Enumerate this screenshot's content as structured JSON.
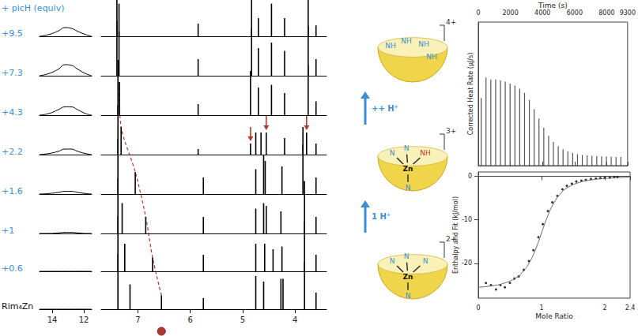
{
  "chart_data": [
    {
      "type": "spectra",
      "title": "+ picH (equiv)",
      "xlim": [
        7.7,
        3.4
      ],
      "xticks": [
        7,
        6,
        5,
        4
      ],
      "inset_xlim": [
        14.8,
        11.5
      ],
      "inset_xticks": [
        14,
        12
      ],
      "ylim": [
        0,
        1
      ],
      "tick_labels": "x",
      "broad_x": [
        14.8,
        14.2,
        13.6,
        13.2,
        12.8,
        12.4,
        11.9,
        11.5
      ],
      "dot_x": 6.55,
      "series": [
        {
          "name": "Rim₄Zn",
          "color": "#000000",
          "x": [
            7.38,
            7.15,
            6.55,
            5.75,
            4.75,
            4.6,
            4.27,
            4.23,
            3.82,
            3.6
          ],
          "values": [
            1.0,
            0.45,
            0.25,
            0.2,
            0.6,
            0.5,
            0.55,
            0.55,
            0.85,
            0.3
          ],
          "broad": [
            0,
            0,
            0,
            0,
            0,
            0,
            0,
            0
          ],
          "tracked": 6.55
        },
        {
          "name": "+0.6",
          "color": "#000000",
          "x": [
            7.38,
            7.25,
            6.72,
            5.75,
            4.75,
            4.58,
            4.42,
            4.25,
            3.82,
            3.6
          ],
          "values": [
            1.0,
            0.5,
            0.25,
            0.3,
            0.5,
            0.5,
            0.4,
            0.45,
            0.9,
            0.3
          ],
          "broad": [
            0,
            0,
            0,
            0,
            0,
            0,
            0,
            0
          ],
          "tracked": 6.72
        },
        {
          "name": "+1",
          "color": "#000000",
          "x": [
            7.38,
            7.3,
            6.85,
            5.75,
            4.75,
            4.6,
            4.55,
            4.27,
            3.82,
            3.6
          ],
          "values": [
            1.0,
            0.55,
            0.3,
            0.3,
            0.45,
            0.55,
            0.5,
            0.4,
            0.95,
            0.3
          ],
          "broad": [
            0,
            0,
            0.01,
            0.02,
            0.02,
            0.01,
            0,
            0
          ],
          "tracked": 6.85
        },
        {
          "name": "+1.6",
          "color": "#000000",
          "x": [
            7.38,
            7.05,
            5.75,
            4.75,
            4.6,
            4.57,
            4.25,
            3.85,
            3.6
          ],
          "values": [
            1.0,
            0.4,
            0.3,
            0.45,
            0.7,
            0.6,
            0.5,
            0.9,
            0.3
          ],
          "broad": [
            0,
            0.01,
            0.03,
            0.05,
            0.05,
            0.03,
            0.01,
            0
          ],
          "tracked": 7.05
        },
        {
          "name": "+2.2",
          "color": "#000000",
          "x": [
            7.38,
            7.32,
            5.85,
            4.85,
            4.75,
            4.65,
            4.55,
            4.2,
            3.85,
            3.78,
            3.6
          ],
          "values": [
            0.9,
            0.5,
            0.1,
            0.2,
            0.4,
            0.4,
            0.4,
            0.3,
            0.5,
            0.4,
            0.2
          ],
          "broad": [
            0,
            0.02,
            0.06,
            0.1,
            0.1,
            0.06,
            0.02,
            0
          ],
          "tracked": 7.32,
          "arrows": [
            4.85,
            4.55,
            3.78
          ]
        },
        {
          "name": "+4.3",
          "color": "#000000",
          "x": [
            7.38,
            7.35,
            5.85,
            4.85,
            4.7,
            4.45,
            4.2,
            3.75,
            3.6
          ],
          "values": [
            1.0,
            0.6,
            0.2,
            0.8,
            0.5,
            0.55,
            0.4,
            0.9,
            0.25
          ],
          "broad": [
            0,
            0.03,
            0.1,
            0.15,
            0.15,
            0.1,
            0.03,
            0
          ],
          "tracked": 7.35
        },
        {
          "name": "+7.3",
          "color": "#000000",
          "x": [
            7.4,
            7.36,
            5.85,
            4.83,
            4.7,
            4.45,
            4.2,
            3.75,
            3.6
          ],
          "values": [
            1.0,
            0.8,
            0.3,
            0.85,
            0.5,
            0.6,
            0.45,
            0.9,
            0.3
          ],
          "broad": [
            0,
            0.04,
            0.12,
            0.2,
            0.19,
            0.12,
            0.04,
            0
          ]
        },
        {
          "name": "+9.5",
          "color": "#000000",
          "x": [
            7.4,
            7.36,
            5.85,
            4.83,
            4.7,
            4.45,
            4.2,
            3.75,
            3.6
          ],
          "values": [
            1.0,
            0.9,
            0.35,
            1.0,
            0.5,
            0.9,
            0.5,
            1.0,
            0.3
          ],
          "broad": [
            0,
            0.05,
            0.15,
            0.24,
            0.22,
            0.14,
            0.05,
            0
          ]
        }
      ]
    },
    {
      "type": "bar",
      "x_label": "Time (s)",
      "y_label": "Corrected Heat Rate (μJ/s)",
      "x": [
        180,
        480,
        780,
        1080,
        1380,
        1680,
        1980,
        2280,
        2580,
        2880,
        3180,
        3480,
        3780,
        4080,
        4380,
        4680,
        4980,
        5280,
        5580,
        5880,
        6180,
        6480,
        6780,
        7080,
        7380,
        7680,
        7980,
        8280,
        8580,
        8880
      ],
      "values": [
        3.3,
        4.3,
        4.2,
        4.2,
        4.15,
        4.1,
        4.0,
        3.9,
        3.75,
        3.55,
        3.2,
        2.75,
        2.3,
        1.85,
        1.45,
        1.15,
        0.95,
        0.8,
        0.7,
        0.62,
        0.56,
        0.52,
        0.5,
        0.48,
        0.46,
        0.45,
        0.44,
        0.43,
        0.42,
        0.42
      ],
      "color": "#555555",
      "xlim": [
        0,
        9300
      ],
      "xticks": [
        0,
        2000,
        4000,
        6000,
        8000
      ],
      "ylim": [
        0,
        7
      ],
      "tick_labels": "x"
    },
    {
      "type": "scatter",
      "x_label": "Mole Ratio",
      "y_label": "Enthalpy and Fit (kJ/mol)",
      "x": [
        0.12,
        0.2,
        0.28,
        0.35,
        0.42,
        0.5,
        0.57,
        0.64,
        0.72,
        0.8,
        0.87,
        0.95,
        1.02,
        1.1,
        1.17,
        1.25,
        1.33,
        1.4,
        1.48,
        1.55,
        1.63,
        1.7,
        1.78,
        1.86,
        1.93,
        2.0,
        2.08,
        2.15,
        2.2
      ],
      "values": [
        -24.5,
        -25,
        -26,
        -25,
        -25.5,
        -24.5,
        -23.5,
        -23,
        -21.5,
        -19.5,
        -17,
        -14,
        -11,
        -8,
        -6,
        -4.5,
        -3,
        -2.2,
        -1.7,
        -1.2,
        -1,
        -0.8,
        -0.6,
        -0.5,
        -0.4,
        -0.3,
        -0.3,
        -0.2,
        -0.2
      ],
      "color": "#000000",
      "fit": {
        "x": [
          0,
          0.2,
          0.4,
          0.6,
          0.7,
          0.8,
          0.9,
          1.0,
          1.1,
          1.2,
          1.3,
          1.4,
          1.6,
          1.8,
          2.0,
          2.2,
          2.4
        ],
        "values": [
          -25.5,
          -25.2,
          -24.6,
          -23.3,
          -22,
          -20,
          -17,
          -13,
          -9,
          -6,
          -4,
          -2.7,
          -1.4,
          -0.8,
          -0.5,
          -0.3,
          -0.2
        ],
        "color": "#666666"
      },
      "xlim": [
        0,
        2.4
      ],
      "xticks": [
        0,
        1,
        2
      ],
      "ylim": [
        -28,
        1
      ],
      "yticks": [
        -20,
        -10,
        0
      ]
    }
  ],
  "diagram": {
    "states": [
      {
        "charge": "2+",
        "labels": [
          "N",
          "N",
          "N",
          "Zn",
          "N"
        ]
      },
      {
        "charge": "3+",
        "labels": [
          "N",
          "N",
          "NH",
          "Zn",
          "N"
        ]
      },
      {
        "charge": "4+",
        "labels": [
          "NH",
          "NH",
          "NH",
          "NH"
        ]
      }
    ],
    "steps": [
      "1 H⁺",
      "++ H⁺"
    ]
  }
}
